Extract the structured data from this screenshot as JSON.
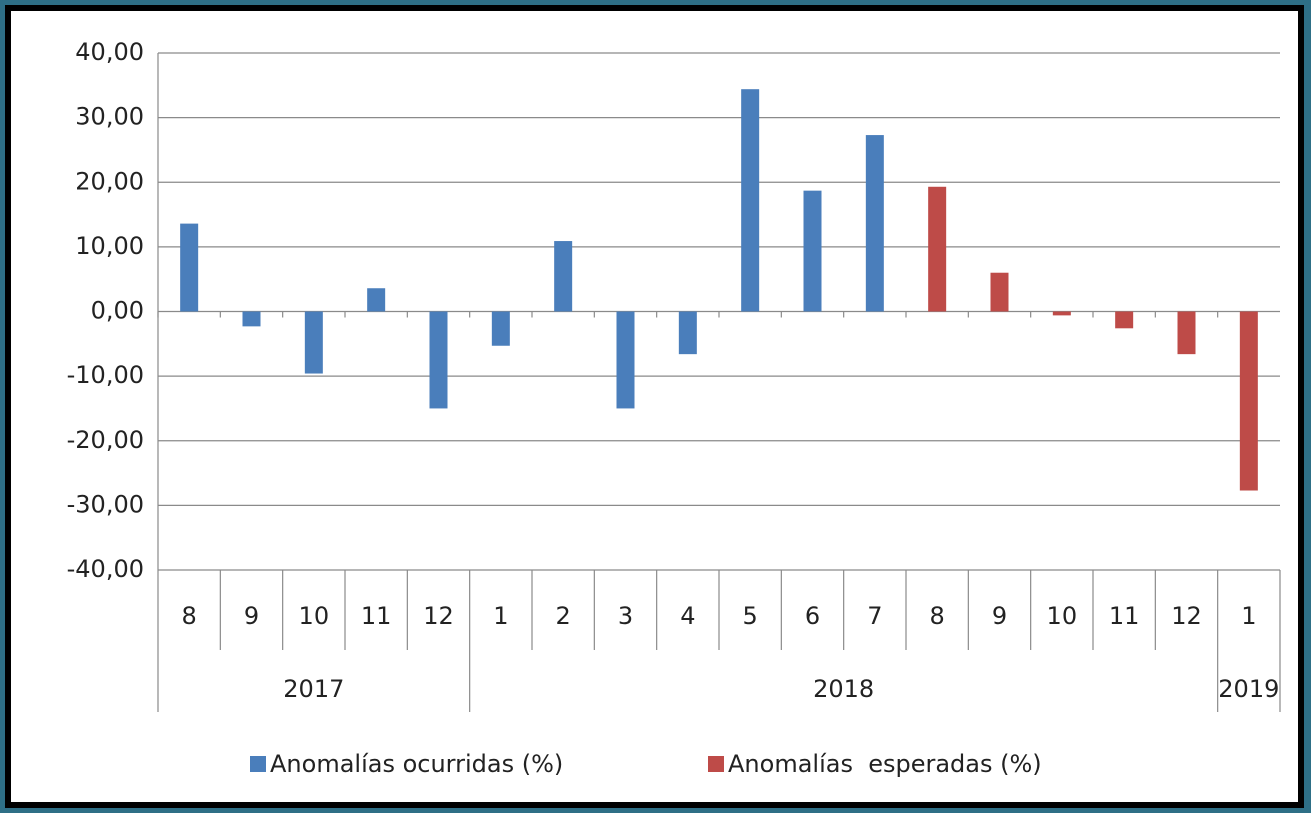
{
  "chart_data": {
    "type": "bar",
    "categories": [
      "8",
      "9",
      "10",
      "11",
      "12",
      "1",
      "2",
      "3",
      "4",
      "5",
      "6",
      "7",
      "8",
      "9",
      "10",
      "11",
      "12",
      "1"
    ],
    "years": [
      "2017",
      "2017",
      "2017",
      "2017",
      "2017",
      "2018",
      "2018",
      "2018",
      "2018",
      "2018",
      "2018",
      "2018",
      "2018",
      "2018",
      "2018",
      "2018",
      "2018",
      "2019"
    ],
    "series": [
      {
        "name": "Anomalías ocurridas (%)",
        "color": "#4a7ebb",
        "values": [
          13.6,
          -2.3,
          -9.6,
          3.6,
          -15.0,
          -5.3,
          10.9,
          -15.0,
          -6.6,
          34.4,
          18.7,
          27.3,
          null,
          null,
          null,
          null,
          null,
          null
        ]
      },
      {
        "name": "Anomalías  esperadas (%)",
        "color": "#be4b48",
        "values": [
          null,
          null,
          null,
          null,
          null,
          null,
          null,
          null,
          null,
          null,
          null,
          null,
          19.3,
          6.0,
          -0.6,
          -2.6,
          -6.6,
          -27.7
        ]
      }
    ],
    "ylim": [
      -40,
      40
    ],
    "yticks": [
      {
        "value": -40,
        "label": "-40,00"
      },
      {
        "value": -30,
        "label": "-30,00"
      },
      {
        "value": -20,
        "label": "-20,00"
      },
      {
        "value": -10,
        "label": "-10,00"
      },
      {
        "value": 0,
        "label": "0,00"
      },
      {
        "value": 10,
        "label": "10,00"
      },
      {
        "value": 20,
        "label": "20,00"
      },
      {
        "value": 30,
        "label": "30,00"
      },
      {
        "value": 40,
        "label": "40,00"
      }
    ],
    "grid": true,
    "legend": "bottom"
  }
}
